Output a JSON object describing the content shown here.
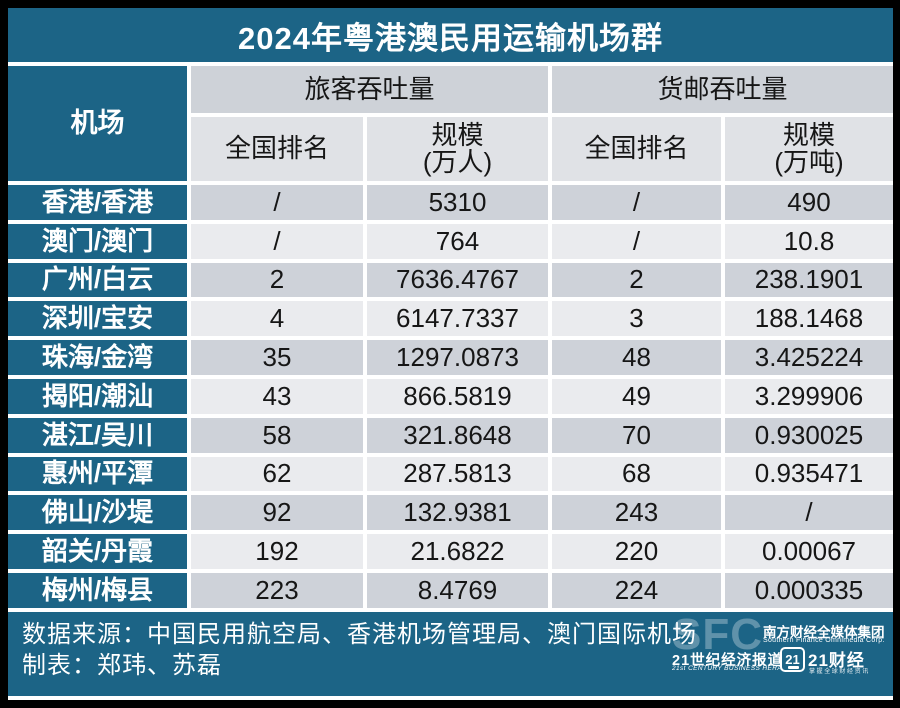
{
  "page": {
    "title": "2024年粤港澳民用运输机场群"
  },
  "colors": {
    "teal": "#1c6486",
    "row_dark": "#ced2d9",
    "row_light": "#eaebee",
    "group_header": "#ced2d8",
    "sub_header": "#e0e2e6",
    "page_border": "#000000"
  },
  "table": {
    "airport_header": "机场",
    "groups": [
      {
        "label": "旅客吞吐量",
        "sub": [
          {
            "label": "全国排名"
          },
          {
            "label": "规模",
            "unit": "(万人)"
          }
        ]
      },
      {
        "label": "货邮吞吐量",
        "sub": [
          {
            "label": "全国排名"
          },
          {
            "label": "规模",
            "unit": "(万吨)"
          }
        ]
      }
    ],
    "rows": [
      {
        "airport": "香港/香港",
        "pax_rank": "/",
        "pax_scale": "5310",
        "cargo_rank": "/",
        "cargo_scale": "490"
      },
      {
        "airport": "澳门/澳门",
        "pax_rank": "/",
        "pax_scale": "764",
        "cargo_rank": "/",
        "cargo_scale": "10.8"
      },
      {
        "airport": "广州/白云",
        "pax_rank": "2",
        "pax_scale": "7636.4767",
        "cargo_rank": "2",
        "cargo_scale": "238.1901"
      },
      {
        "airport": "深圳/宝安",
        "pax_rank": "4",
        "pax_scale": "6147.7337",
        "cargo_rank": "3",
        "cargo_scale": "188.1468"
      },
      {
        "airport": "珠海/金湾",
        "pax_rank": "35",
        "pax_scale": "1297.0873",
        "cargo_rank": "48",
        "cargo_scale": "3.425224"
      },
      {
        "airport": "揭阳/潮汕",
        "pax_rank": "43",
        "pax_scale": "866.5819",
        "cargo_rank": "49",
        "cargo_scale": "3.299906"
      },
      {
        "airport": "湛江/吴川",
        "pax_rank": "58",
        "pax_scale": "321.8648",
        "cargo_rank": "70",
        "cargo_scale": "0.930025"
      },
      {
        "airport": "惠州/平潭",
        "pax_rank": "62",
        "pax_scale": "287.5813",
        "cargo_rank": "68",
        "cargo_scale": "0.935471"
      },
      {
        "airport": "佛山/沙堤",
        "pax_rank": "92",
        "pax_scale": "132.9381",
        "cargo_rank": "243",
        "cargo_scale": "/"
      },
      {
        "airport": "韶关/丹霞",
        "pax_rank": "192",
        "pax_scale": "21.6822",
        "cargo_rank": "220",
        "cargo_scale": "0.00067"
      },
      {
        "airport": "梅州/梅县",
        "pax_rank": "223",
        "pax_scale": "8.4769",
        "cargo_rank": "224",
        "cargo_scale": "0.000335"
      }
    ]
  },
  "footer": {
    "source": "数据来源：中国民用航空局、香港机场管理局、澳门国际机场",
    "credit": "制表：郑玮、苏磊",
    "logos": {
      "sfc": "SFC",
      "group_cn": "南方财经全媒体集团",
      "group_en": "Southern Finance Omnimedia Corp.",
      "herald_cn": "21世纪经济报道",
      "herald_en": "21st CENTURY BUSINESS HERALD",
      "badge": "21",
      "app_name": "21财经",
      "app_slogan": "掌握全球财经资讯"
    }
  },
  "chart_data": {
    "type": "table",
    "title": "2024年粤港澳民用运输机场群",
    "columns": [
      "机场",
      "旅客吞吐量-全国排名",
      "旅客吞吐量-规模(万人)",
      "货邮吞吐量-全国排名",
      "货邮吞吐量-规模(万吨)"
    ],
    "rows": [
      [
        "香港/香港",
        "/",
        "5310",
        "/",
        "490"
      ],
      [
        "澳门/澳门",
        "/",
        "764",
        "/",
        "10.8"
      ],
      [
        "广州/白云",
        "2",
        "7636.4767",
        "2",
        "238.1901"
      ],
      [
        "深圳/宝安",
        "4",
        "6147.7337",
        "3",
        "188.1468"
      ],
      [
        "珠海/金湾",
        "35",
        "1297.0873",
        "48",
        "3.425224"
      ],
      [
        "揭阳/潮汕",
        "43",
        "866.5819",
        "49",
        "3.299906"
      ],
      [
        "湛江/吴川",
        "58",
        "321.8648",
        "70",
        "0.930025"
      ],
      [
        "惠州/平潭",
        "62",
        "287.5813",
        "68",
        "0.935471"
      ],
      [
        "佛山/沙堤",
        "92",
        "132.9381",
        "243",
        "/"
      ],
      [
        "韶关/丹霞",
        "192",
        "21.6822",
        "220",
        "0.00067"
      ],
      [
        "梅州/梅县",
        "223",
        "8.4769",
        "224",
        "0.000335"
      ]
    ]
  }
}
